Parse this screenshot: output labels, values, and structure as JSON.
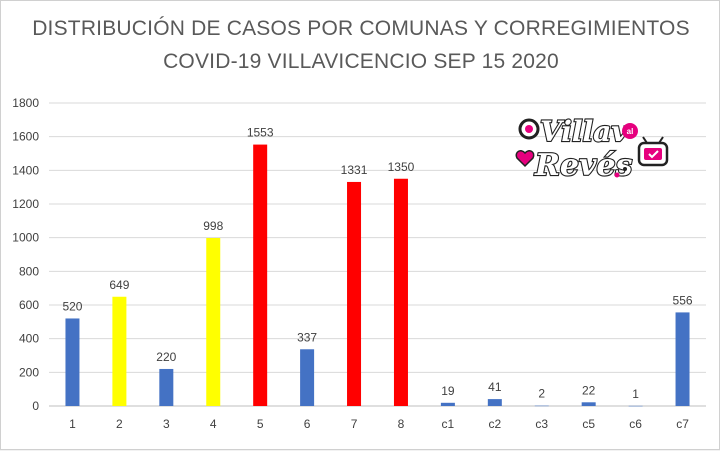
{
  "chart_data": {
    "type": "bar",
    "title": "DISTRIBUCIÓN DE CASOS POR COMUNAS Y CORREGIMIENTOS",
    "subtitle": "COVID-19 VILLAVICENCIO SEP 15 2020",
    "xlabel": "",
    "ylabel": "",
    "ylim": [
      0,
      1800
    ],
    "yticks": [
      0,
      200,
      400,
      600,
      800,
      1000,
      1200,
      1400,
      1600,
      1800
    ],
    "grid": true,
    "legend": "none",
    "categories": [
      "1",
      "2",
      "3",
      "4",
      "5",
      "6",
      "7",
      "8",
      "c1",
      "c2",
      "c3",
      "c5",
      "c6",
      "c7"
    ],
    "values": [
      520,
      649,
      220,
      998,
      1553,
      337,
      1331,
      1350,
      19,
      41,
      2,
      22,
      1,
      556
    ],
    "bar_colors": [
      "#4472c4",
      "#ffff00",
      "#4472c4",
      "#ffff00",
      "#ff0000",
      "#4472c4",
      "#ff0000",
      "#ff0000",
      "#4472c4",
      "#4472c4",
      "#4472c4",
      "#4472c4",
      "#4472c4",
      "#4472c4"
    ]
  },
  "logo": {
    "text_top": "Villav",
    "text_small": "al",
    "text_bottom": "Revés",
    "colors": {
      "pink": "#e6007e",
      "dark": "#222222"
    }
  },
  "colors": {
    "grid": "#d9d9d9",
    "axis": "#bfbfbf",
    "title": "#595959"
  }
}
